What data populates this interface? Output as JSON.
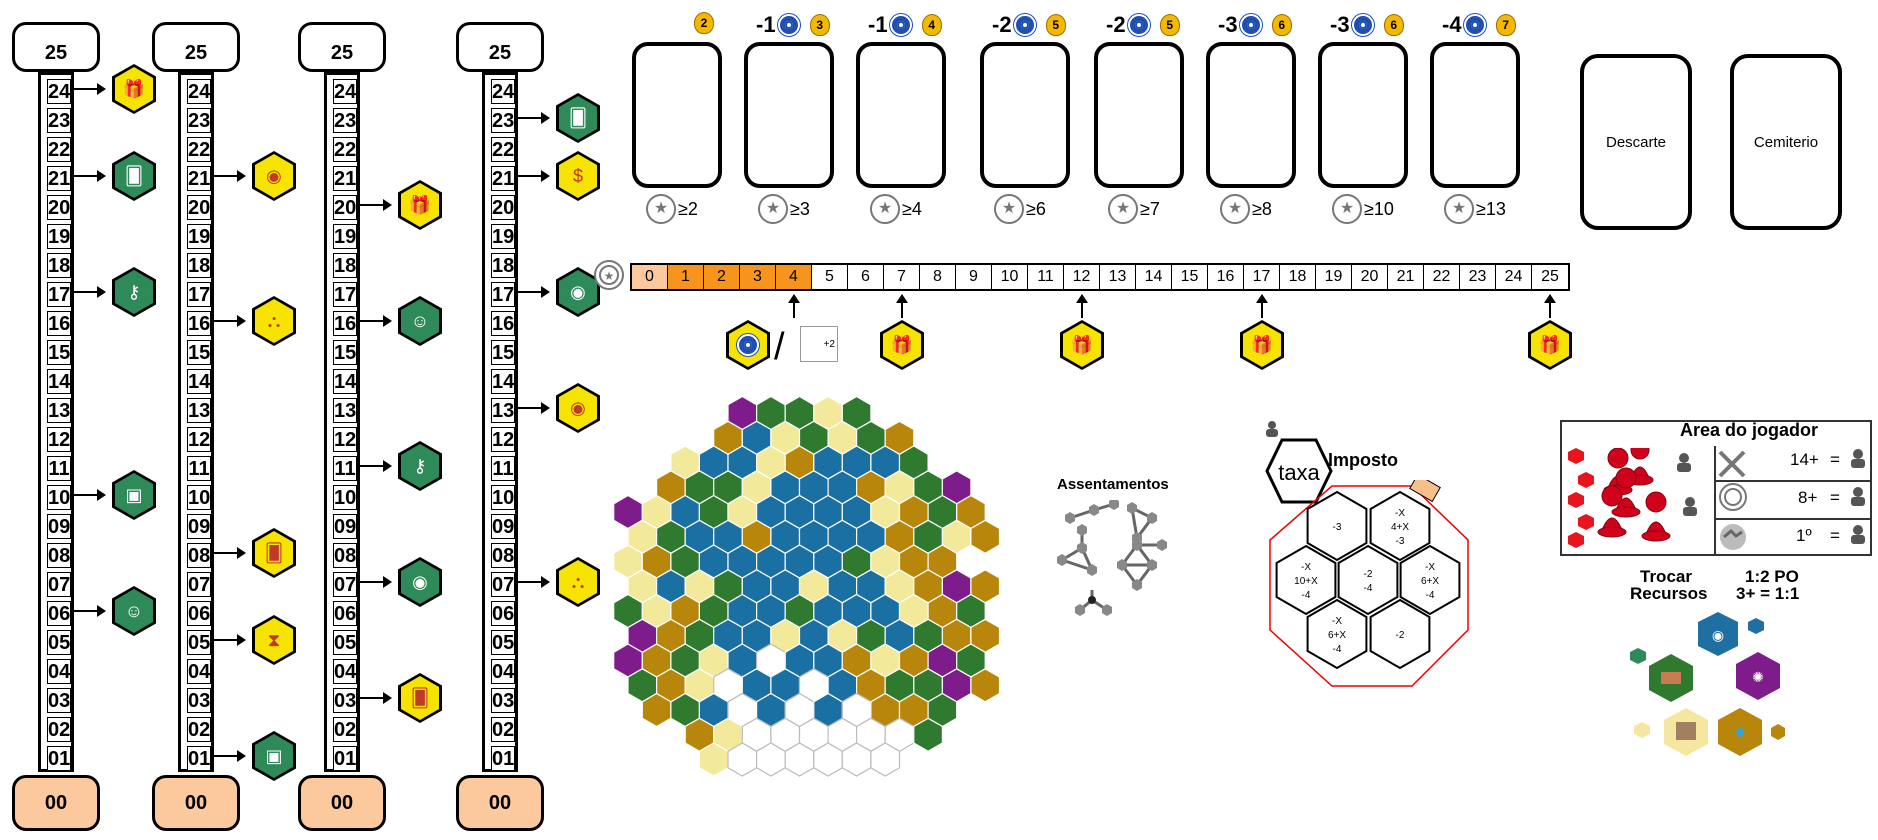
{
  "tracks": [
    {
      "top": "25",
      "bottom": "00",
      "cells": [
        "24",
        "23",
        "22",
        "21",
        "20",
        "19",
        "18",
        "17",
        "16",
        "15",
        "14",
        "13",
        "12",
        "11",
        "10",
        "09",
        "08",
        "07",
        "06",
        "05",
        "04",
        "03",
        "02",
        "01"
      ]
    },
    {
      "top": "25",
      "bottom": "00",
      "cells": [
        "24",
        "23",
        "22",
        "21",
        "20",
        "19",
        "18",
        "17",
        "16",
        "15",
        "14",
        "13",
        "12",
        "11",
        "10",
        "09",
        "08",
        "07",
        "06",
        "05",
        "04",
        "03",
        "02",
        "01"
      ]
    },
    {
      "top": "25",
      "bottom": "00",
      "cells": [
        "24",
        "23",
        "22",
        "21",
        "20",
        "19",
        "18",
        "17",
        "16",
        "15",
        "14",
        "13",
        "12",
        "11",
        "10",
        "09",
        "08",
        "07",
        "06",
        "05",
        "04",
        "03",
        "02",
        "01"
      ]
    },
    {
      "top": "25",
      "bottom": "00",
      "cells": [
        "24",
        "23",
        "22",
        "21",
        "20",
        "19",
        "18",
        "17",
        "16",
        "15",
        "14",
        "13",
        "12",
        "11",
        "10",
        "09",
        "08",
        "07",
        "06",
        "05",
        "04",
        "03",
        "02",
        "01"
      ]
    }
  ],
  "track_rewards": [
    {
      "track": 0,
      "level": "24",
      "icon": "gift-icon",
      "color": "#f7e300"
    },
    {
      "track": 0,
      "level": "21",
      "icon": "card-icon",
      "color": "#2f8a5a"
    },
    {
      "track": 0,
      "level": "17",
      "icon": "key-icon",
      "color": "#2f8a5a"
    },
    {
      "track": 0,
      "level": "10",
      "icon": "briefcase-icon",
      "color": "#2f8a5a"
    },
    {
      "track": 0,
      "level": "06",
      "icon": "people-icon",
      "color": "#2f8a5a"
    },
    {
      "track": 1,
      "level": "21",
      "icon": "eye-icon",
      "color": "#f7e300"
    },
    {
      "track": 1,
      "level": "16",
      "icon": "network-icon",
      "color": "#f7e300"
    },
    {
      "track": 1,
      "level": "08",
      "icon": "card-icon",
      "color": "#f7e300"
    },
    {
      "track": 1,
      "level": "05",
      "icon": "hourglass-icon",
      "color": "#f7e300"
    },
    {
      "track": 1,
      "level": "01",
      "icon": "briefcase-icon",
      "color": "#2f8a5a"
    },
    {
      "track": 2,
      "level": "20",
      "icon": "gift-icon",
      "color": "#f7e300"
    },
    {
      "track": 2,
      "level": "16",
      "icon": "people-icon",
      "color": "#2f8a5a"
    },
    {
      "track": 2,
      "level": "11",
      "icon": "key-icon",
      "color": "#2f8a5a"
    },
    {
      "track": 2,
      "level": "07",
      "icon": "eye-icon",
      "color": "#2f8a5a"
    },
    {
      "track": 2,
      "level": "03",
      "icon": "card-icon",
      "color": "#f7e300"
    },
    {
      "track": 3,
      "level": "23",
      "icon": "card-icon",
      "color": "#2f8a5a"
    },
    {
      "track": 3,
      "level": "21",
      "icon": "coin-bag-icon",
      "color": "#f7e300"
    },
    {
      "track": 3,
      "level": "17",
      "icon": "eye-icon",
      "color": "#2f8a5a"
    },
    {
      "track": 3,
      "level": "13",
      "icon": "eye-icon",
      "color": "#f7e300"
    },
    {
      "track": 3,
      "level": "07",
      "icon": "network-icon",
      "color": "#f7e300"
    }
  ],
  "card_slots": [
    {
      "cost": "",
      "coin": "2",
      "req": "≥2"
    },
    {
      "cost": "-1",
      "coin": "3",
      "req": "≥3"
    },
    {
      "cost": "-1",
      "coin": "4",
      "req": "≥4"
    },
    {
      "cost": "-2",
      "coin": "5",
      "req": "≥6"
    },
    {
      "cost": "-2",
      "coin": "5",
      "req": "≥7"
    },
    {
      "cost": "-3",
      "coin": "6",
      "req": "≥8"
    },
    {
      "cost": "-3",
      "coin": "6",
      "req": "≥10"
    },
    {
      "cost": "-4",
      "coin": "7",
      "req": "≥13"
    }
  ],
  "piles": {
    "discard": "Descarte",
    "graveyard": "Cemiterio"
  },
  "prestige_track": {
    "cells": [
      "0",
      "1",
      "2",
      "3",
      "4",
      "5",
      "6",
      "7",
      "8",
      "9",
      "10",
      "11",
      "12",
      "13",
      "14",
      "15",
      "16",
      "17",
      "18",
      "19",
      "20",
      "21",
      "22",
      "23",
      "24",
      "25"
    ],
    "filled_through": 4,
    "bonus_2": "+2",
    "rewards_at": [
      "4",
      "7",
      "12",
      "17",
      "25"
    ]
  },
  "map": {
    "settlements_label": "Assentamentos"
  },
  "tax": {
    "badge": "taxa",
    "title": "Imposto",
    "tiles": [
      {
        "lines": [
          "-3"
        ]
      },
      {
        "lines": [
          "-X",
          "4+X",
          "-3"
        ]
      },
      {
        "lines": [
          "-X",
          "10+X",
          "-4"
        ]
      },
      {
        "lines": [
          "-2",
          "-4"
        ]
      },
      {
        "lines": [
          "-X",
          "6+X",
          "-4"
        ]
      },
      {
        "lines": [
          "-X",
          "6+X",
          "-4"
        ]
      },
      {
        "lines": [
          "-2"
        ]
      }
    ]
  },
  "player": {
    "title": "Area do jogador",
    "rows": [
      {
        "value": "14+",
        "eq": "="
      },
      {
        "value": "8+",
        "eq": "="
      },
      {
        "value": "1º",
        "eq": "="
      }
    ]
  },
  "trade": {
    "line1_left": "Trocar",
    "line1_right": "1:2 PO",
    "line2_left": "Recursos",
    "line2_right": "3+ = 1:1"
  },
  "colors": {
    "orange": "#f7941d",
    "peach": "#fcc99e",
    "green": "#2f8a5a",
    "yellow": "#f7e300",
    "blue": "#1f4fb3",
    "purple": "#7d1c8a",
    "brown": "#b8860b",
    "red": "#d0021b"
  }
}
